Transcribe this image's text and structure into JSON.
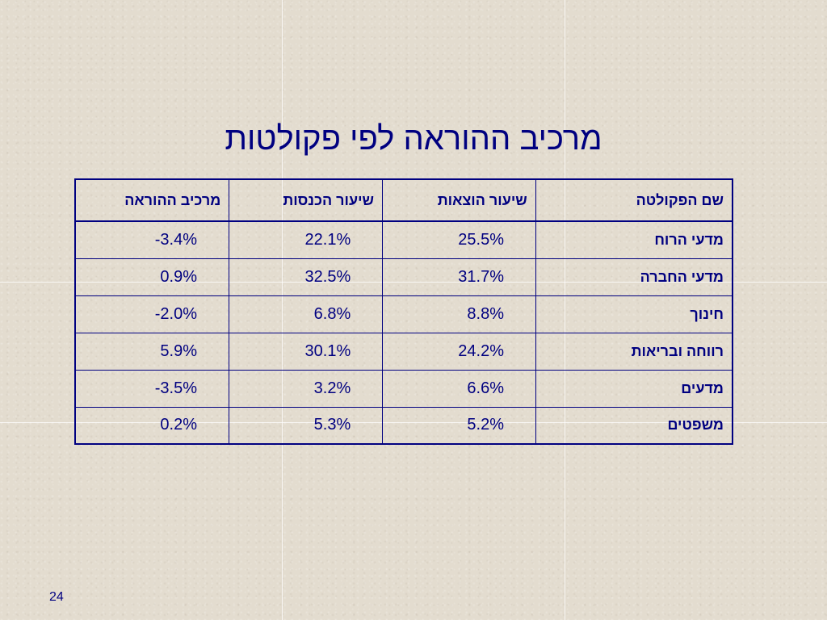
{
  "slide": {
    "title": "מרכיב ההוראה לפי פקולטות",
    "page_number": "24"
  },
  "table": {
    "headers": [
      "שם הפקולטה",
      "שיעור הוצאות",
      "שיעור הכנסות",
      "מרכיב ההוראה"
    ],
    "rows": [
      {
        "faculty": "מדעי הרוח",
        "expenses": "25.5%",
        "income": "22.1%",
        "teaching": "-3.4%"
      },
      {
        "faculty": "מדעי החברה",
        "expenses": "31.7%",
        "income": "32.5%",
        "teaching": "0.9%"
      },
      {
        "faculty": "חינוך",
        "expenses": "8.8%",
        "income": "6.8%",
        "teaching": "-2.0%"
      },
      {
        "faculty": "רווחה ובריאות",
        "expenses": "24.2%",
        "income": "30.1%",
        "teaching": "5.9%"
      },
      {
        "faculty": "מדעים",
        "expenses": "6.6%",
        "income": "3.2%",
        "teaching": "-3.5%"
      },
      {
        "faculty": "משפטים",
        "expenses": "5.2%",
        "income": "5.3%",
        "teaching": "0.2%"
      }
    ]
  },
  "colors": {
    "text": "#000080",
    "background": "#e3dccf"
  }
}
